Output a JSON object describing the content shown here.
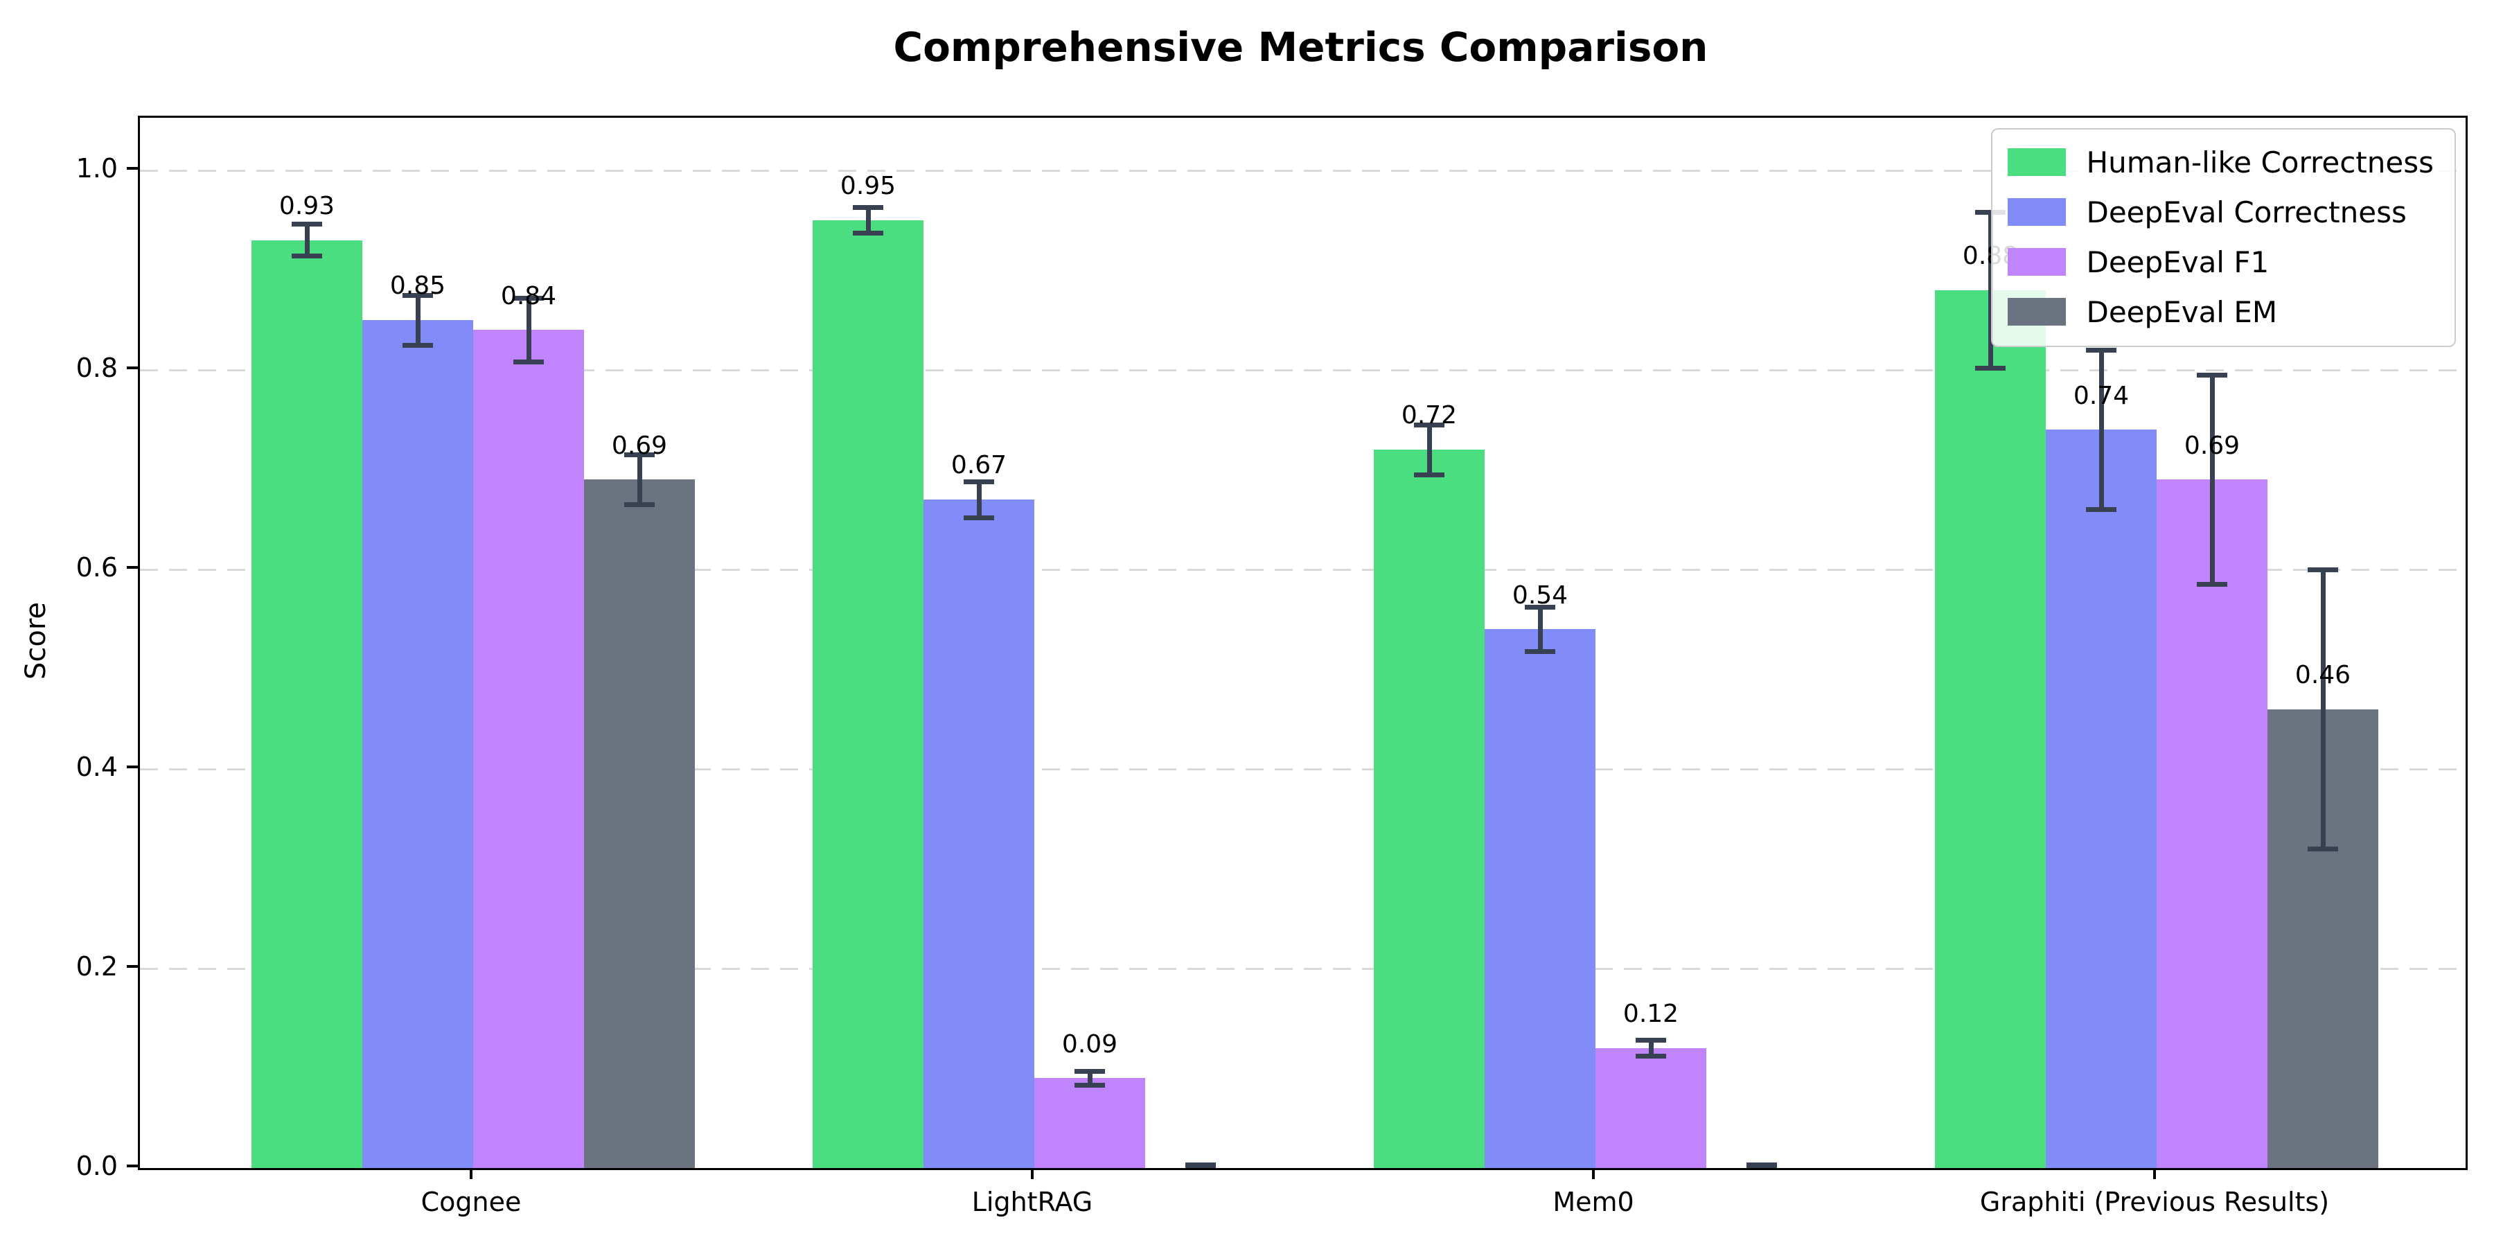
{
  "chart_data": {
    "type": "bar",
    "title": "Comprehensive Metrics Comparison",
    "ylabel": "Score",
    "xlabel": "",
    "categories": [
      "Cognee",
      "LightRAG",
      "Mem0",
      "Graphiti (Previous Results)"
    ],
    "series": [
      {
        "name": "Human-like Correctness",
        "color": "#4ade80",
        "values": [
          0.93,
          0.95,
          0.72,
          0.88
        ],
        "errors": [
          0.016,
          0.013,
          0.025,
          0.078
        ],
        "labels": [
          "0.93",
          "0.95",
          "0.72",
          "0.88"
        ]
      },
      {
        "name": "DeepEval Correctness",
        "color": "#818cf8",
        "values": [
          0.85,
          0.67,
          0.54,
          0.74
        ],
        "errors": [
          0.025,
          0.018,
          0.022,
          0.08
        ],
        "labels": [
          "0.85",
          "0.67",
          "0.54",
          "0.74"
        ]
      },
      {
        "name": "DeepEval F1",
        "color": "#c084fc",
        "values": [
          0.84,
          0.09,
          0.12,
          0.69
        ],
        "errors": [
          0.032,
          0.007,
          0.008,
          0.105
        ],
        "labels": [
          "0.84",
          "0.09",
          "0.12",
          "0.69"
        ]
      },
      {
        "name": "DeepEval EM",
        "color": "#6b7280",
        "values": [
          0.69,
          0.0,
          0.0,
          0.46
        ],
        "errors": [
          0.025,
          0.003,
          0.003,
          0.14
        ],
        "labels": [
          "0.69",
          null,
          null,
          "0.46"
        ]
      }
    ],
    "ylim": [
      0.0,
      1.05
    ],
    "yticks": [
      0.0,
      0.2,
      0.4,
      0.6,
      0.8,
      1.0
    ],
    "ytick_labels": [
      "0.0",
      "0.2",
      "0.4",
      "0.6",
      "0.8",
      "1.0"
    ],
    "grid": "horizontal-dashed",
    "legend_position": "upper right",
    "error_bar_color": "#374151"
  }
}
